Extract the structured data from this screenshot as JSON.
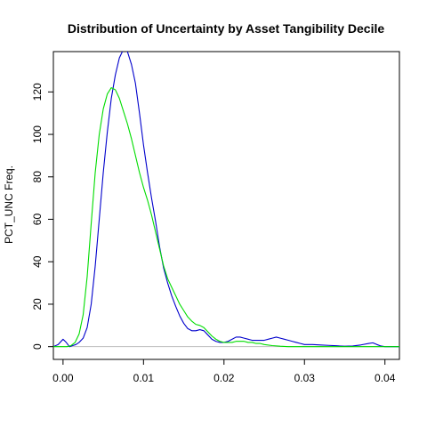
{
  "chart_data": {
    "type": "line",
    "title": "Distribution of Uncertainty by Asset Tangibility Decile",
    "xlabel": "",
    "ylabel": "PCT_UNC Freq.",
    "xlim": [
      -0.0012,
      0.0418
    ],
    "ylim": [
      -6,
      139
    ],
    "x_ticks": [
      0.0,
      0.01,
      0.02,
      0.03,
      0.04
    ],
    "x_tick_labels": [
      "0.00",
      "0.01",
      "0.02",
      "0.03",
      "0.04"
    ],
    "y_ticks": [
      0,
      20,
      40,
      60,
      80,
      100,
      120
    ],
    "y_tick_labels": [
      "0",
      "20",
      "40",
      "60",
      "80",
      "100",
      "120"
    ],
    "baseline": 0,
    "grid": false,
    "legend": "none",
    "series": [
      {
        "color": "#0000cc",
        "points": [
          [
            -0.0012,
            0
          ],
          [
            -0.0006,
            1
          ],
          [
            0.0,
            3.5
          ],
          [
            0.0004,
            2
          ],
          [
            0.0008,
            0
          ],
          [
            0.0012,
            0.5
          ],
          [
            0.0016,
            1
          ],
          [
            0.002,
            2
          ],
          [
            0.0025,
            4
          ],
          [
            0.003,
            9
          ],
          [
            0.0035,
            20
          ],
          [
            0.004,
            38
          ],
          [
            0.0045,
            60
          ],
          [
            0.005,
            82
          ],
          [
            0.0055,
            101
          ],
          [
            0.006,
            117
          ],
          [
            0.0065,
            128
          ],
          [
            0.007,
            136
          ],
          [
            0.0075,
            140
          ],
          [
            0.008,
            139
          ],
          [
            0.0085,
            133
          ],
          [
            0.009,
            124
          ],
          [
            0.0095,
            110
          ],
          [
            0.01,
            95
          ],
          [
            0.0105,
            82
          ],
          [
            0.011,
            70
          ],
          [
            0.0115,
            59
          ],
          [
            0.012,
            47
          ],
          [
            0.0125,
            37
          ],
          [
            0.013,
            30
          ],
          [
            0.0135,
            24
          ],
          [
            0.014,
            19
          ],
          [
            0.0145,
            14.5
          ],
          [
            0.015,
            11
          ],
          [
            0.0155,
            8.5
          ],
          [
            0.016,
            7.5
          ],
          [
            0.0165,
            7.5
          ],
          [
            0.017,
            8
          ],
          [
            0.0175,
            7.5
          ],
          [
            0.018,
            5.5
          ],
          [
            0.0185,
            3.5
          ],
          [
            0.019,
            2.5
          ],
          [
            0.0195,
            2
          ],
          [
            0.02,
            2
          ],
          [
            0.0205,
            2.5
          ],
          [
            0.021,
            3.5
          ],
          [
            0.0215,
            4.5
          ],
          [
            0.022,
            4.5
          ],
          [
            0.0225,
            4
          ],
          [
            0.023,
            3.5
          ],
          [
            0.0235,
            3
          ],
          [
            0.024,
            3
          ],
          [
            0.0245,
            3
          ],
          [
            0.025,
            3
          ],
          [
            0.0255,
            3.5
          ],
          [
            0.026,
            4
          ],
          [
            0.0265,
            4.5
          ],
          [
            0.027,
            4
          ],
          [
            0.0275,
            3.5
          ],
          [
            0.028,
            3
          ],
          [
            0.0285,
            2.5
          ],
          [
            0.029,
            2
          ],
          [
            0.0295,
            1.5
          ],
          [
            0.03,
            1
          ],
          [
            0.031,
            1
          ],
          [
            0.032,
            0.8
          ],
          [
            0.033,
            0.6
          ],
          [
            0.034,
            0.4
          ],
          [
            0.035,
            0.2
          ],
          [
            0.036,
            0.3
          ],
          [
            0.037,
            0.8
          ],
          [
            0.038,
            1.5
          ],
          [
            0.0385,
            1.8
          ],
          [
            0.039,
            1
          ],
          [
            0.0395,
            0.3
          ],
          [
            0.04,
            0
          ],
          [
            0.041,
            0
          ],
          [
            0.0418,
            0
          ]
        ]
      },
      {
        "color": "#00dd00",
        "points": [
          [
            -0.0012,
            0
          ],
          [
            0.0,
            0
          ],
          [
            0.0005,
            0
          ],
          [
            0.001,
            0.5
          ],
          [
            0.0015,
            2
          ],
          [
            0.002,
            6
          ],
          [
            0.0025,
            15
          ],
          [
            0.003,
            33
          ],
          [
            0.0035,
            58
          ],
          [
            0.004,
            82
          ],
          [
            0.0045,
            100
          ],
          [
            0.005,
            112
          ],
          [
            0.0055,
            119
          ],
          [
            0.006,
            122
          ],
          [
            0.0065,
            121
          ],
          [
            0.007,
            117
          ],
          [
            0.0075,
            111
          ],
          [
            0.008,
            105
          ],
          [
            0.0085,
            98
          ],
          [
            0.009,
            90
          ],
          [
            0.0095,
            82
          ],
          [
            0.01,
            75
          ],
          [
            0.0105,
            69
          ],
          [
            0.011,
            62
          ],
          [
            0.0115,
            54
          ],
          [
            0.012,
            46
          ],
          [
            0.0125,
            38
          ],
          [
            0.013,
            32
          ],
          [
            0.0135,
            28
          ],
          [
            0.014,
            24
          ],
          [
            0.0145,
            20
          ],
          [
            0.015,
            17
          ],
          [
            0.0155,
            14
          ],
          [
            0.016,
            12
          ],
          [
            0.0165,
            10.5
          ],
          [
            0.017,
            10
          ],
          [
            0.0175,
            9
          ],
          [
            0.018,
            7
          ],
          [
            0.0185,
            5
          ],
          [
            0.019,
            3.5
          ],
          [
            0.0195,
            2.5
          ],
          [
            0.02,
            2
          ],
          [
            0.0205,
            2
          ],
          [
            0.021,
            2
          ],
          [
            0.0215,
            2.5
          ],
          [
            0.022,
            2.5
          ],
          [
            0.0225,
            2.5
          ],
          [
            0.023,
            2
          ],
          [
            0.0235,
            2
          ],
          [
            0.024,
            1.5
          ],
          [
            0.0245,
            1.5
          ],
          [
            0.025,
            1
          ],
          [
            0.026,
            0.5
          ],
          [
            0.027,
            0.2
          ],
          [
            0.028,
            0
          ],
          [
            0.03,
            0
          ],
          [
            0.035,
            0
          ],
          [
            0.04,
            0
          ],
          [
            0.0418,
            0
          ]
        ]
      }
    ]
  }
}
